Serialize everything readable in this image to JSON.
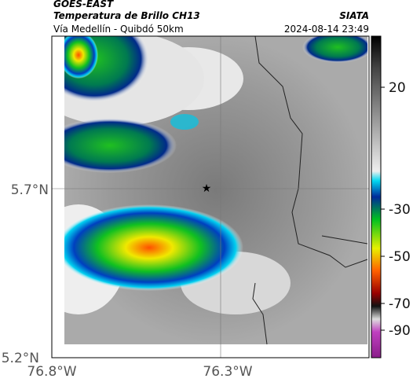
{
  "header": {
    "product": "GOES-EAST",
    "title": "Temperatura de Brillo CH13",
    "source": "SIATA",
    "region": "Vía Medellín - Quibdó 50km",
    "datetime": "2024-08-14 23:49"
  },
  "axes": {
    "y_labels": [
      "5.7°N",
      "5.2°N"
    ],
    "x_labels": [
      "76.8°W",
      "76.3°W"
    ]
  },
  "colorbar": {
    "ticks": [
      20,
      -30,
      -50,
      -70,
      -90
    ]
  }
}
